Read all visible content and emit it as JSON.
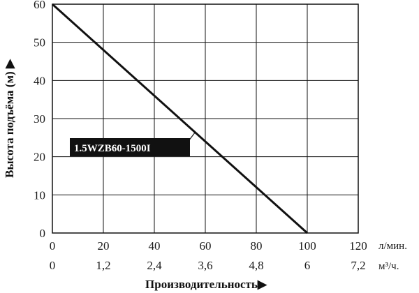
{
  "chart_data": {
    "type": "line",
    "ylabel": "Высота подъёма (м) ▶",
    "xlabel": "Производительность▶",
    "x_unit_primary": "л/мин.",
    "x_unit_secondary": "м³/ч.",
    "x_ticks_primary": [
      "0",
      "20",
      "40",
      "60",
      "80",
      "100",
      "120"
    ],
    "x_ticks_secondary": [
      "0",
      "1,2",
      "2,4",
      "3,6",
      "4,8",
      "6",
      "7,2"
    ],
    "y_ticks": [
      "0",
      "10",
      "20",
      "30",
      "40",
      "50",
      "60"
    ],
    "xlim": [
      0,
      120
    ],
    "ylim": [
      0,
      60
    ],
    "grid": true,
    "series": [
      {
        "name": "1.5WZB60-1500I",
        "x": [
          0,
          100
        ],
        "y": [
          60,
          0
        ]
      }
    ],
    "colors": {
      "line": "#111111",
      "label_bg": "#111111",
      "label_text": "#ffffff"
    }
  }
}
